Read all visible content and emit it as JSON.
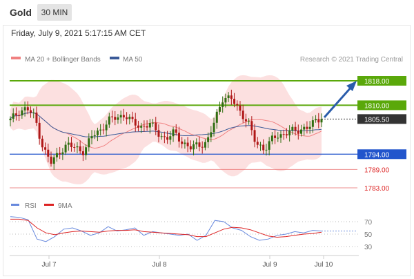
{
  "header": {
    "title": "Gold",
    "timeframe": "30 MIN"
  },
  "timestamp": "Friday, July 9, 2021 5:17:15 AM CET",
  "legend": [
    {
      "label": "MA 20 + Bollinger Bands",
      "color": "#f08080"
    },
    {
      "label": "MA 50",
      "color": "#3a5a98"
    }
  ],
  "credit": "Research © 2021 Trading Central",
  "rsi_legend": [
    {
      "label": "RSI",
      "color": "#6688dd"
    },
    {
      "label": "9MA",
      "color": "#dd2222"
    }
  ],
  "colors": {
    "resistance": "#5aa80a",
    "support": "#2255cc",
    "support_faint": "#e86060",
    "price_badge": "#333333",
    "arrow": "#2a5cab",
    "band_fill": "#fbdada"
  },
  "chart_data": {
    "type": "candlestick",
    "x_ticks": [
      "Jul 7",
      "Jul 8",
      "Jul 9",
      "Jul 10"
    ],
    "current_price": 1805.5,
    "levels": [
      {
        "value": 1818.0,
        "label": "1818.00",
        "kind": "resistance"
      },
      {
        "value": 1810.0,
        "label": "1810.00",
        "kind": "resistance"
      },
      {
        "value": 1794.0,
        "label": "1794.00",
        "kind": "support"
      },
      {
        "value": 1789.0,
        "label": "1789.00",
        "kind": "support-minor"
      },
      {
        "value": 1783.0,
        "label": "1783.00",
        "kind": "support-minor"
      }
    ],
    "current_price_label": "1805.50",
    "price_path_approx": [
      1805,
      1808,
      1809,
      1806,
      1796,
      1791,
      1795,
      1797,
      1796,
      1795,
      1800,
      1802,
      1805,
      1806,
      1807,
      1804,
      1803,
      1804,
      1801,
      1799,
      1801,
      1798,
      1796,
      1797,
      1798,
      1805,
      1813,
      1812,
      1808,
      1805,
      1797,
      1796,
      1799,
      1800,
      1802,
      1801,
      1803,
      1804,
      1805.5
    ],
    "outlook": "bullish toward 1818.00",
    "rsi": {
      "levels": [
        70,
        50,
        30
      ],
      "level_labels": [
        "70",
        "50",
        "30"
      ],
      "rsi_values": [
        78,
        77,
        73,
        42,
        38,
        46,
        58,
        60,
        55,
        48,
        52,
        62,
        55,
        57,
        60,
        48,
        54,
        52,
        50,
        48,
        50,
        40,
        48,
        72,
        70,
        60,
        56,
        46,
        40,
        42,
        48,
        50,
        54,
        52,
        56,
        55
      ],
      "ma_values": [
        74,
        74,
        72,
        60,
        52,
        49,
        52,
        54,
        55,
        54,
        53,
        55,
        56,
        56,
        57,
        54,
        53,
        52,
        51,
        50,
        49,
        46,
        46,
        52,
        58,
        61,
        60,
        57,
        52,
        47,
        45,
        46,
        48,
        50,
        51,
        53
      ]
    }
  }
}
